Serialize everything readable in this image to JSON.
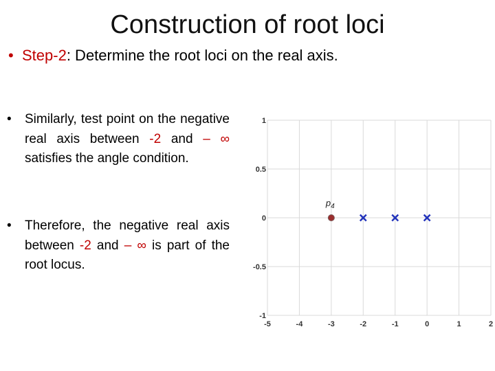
{
  "slide": {
    "title": "Construction of root loci",
    "step": {
      "bullet": "•",
      "label": "Step-2",
      "text": ": Determine the root loci on the real axis."
    },
    "bullets": [
      {
        "bullet": "•",
        "parts": [
          "Similarly, test point on the negative real axis between ",
          "-2",
          " and ",
          "– ∞",
          " satisfies the angle condition."
        ]
      },
      {
        "bullet": "•",
        "parts": [
          "Therefore, the negative real axis between ",
          "-2",
          " and ",
          "– ∞",
          " is part of the root locus."
        ]
      }
    ]
  },
  "colors": {
    "accent_red": "#c00000",
    "pole_marker": "#2233bb",
    "test_point": "#9b2d2d",
    "grid": "#d9d9d9"
  },
  "chart_data": {
    "type": "scatter",
    "title": "",
    "xlabel": "",
    "ylabel": "",
    "xlim": [
      -5,
      2
    ],
    "ylim": [
      -1,
      1
    ],
    "xticks": [
      -5,
      -4,
      -3,
      -2,
      -1,
      0,
      1,
      2
    ],
    "yticks": [
      -1,
      -0.5,
      0,
      0.5,
      1
    ],
    "xtick_labels": [
      "-5",
      "-4",
      "-3",
      "-2",
      "-1",
      "0",
      "1",
      "2"
    ],
    "ytick_labels": [
      "-1",
      "-0.5",
      "0",
      "0.5",
      "1"
    ],
    "grid": true,
    "series": [
      {
        "marker": "x",
        "x": [
          -2,
          -1,
          0
        ],
        "y": [
          0,
          0,
          0
        ]
      },
      {
        "marker": "dot",
        "x": [
          -3
        ],
        "y": [
          0
        ]
      }
    ],
    "annotations": [
      {
        "text": "p",
        "subscript": "4",
        "x": -3,
        "y": 0
      }
    ]
  }
}
